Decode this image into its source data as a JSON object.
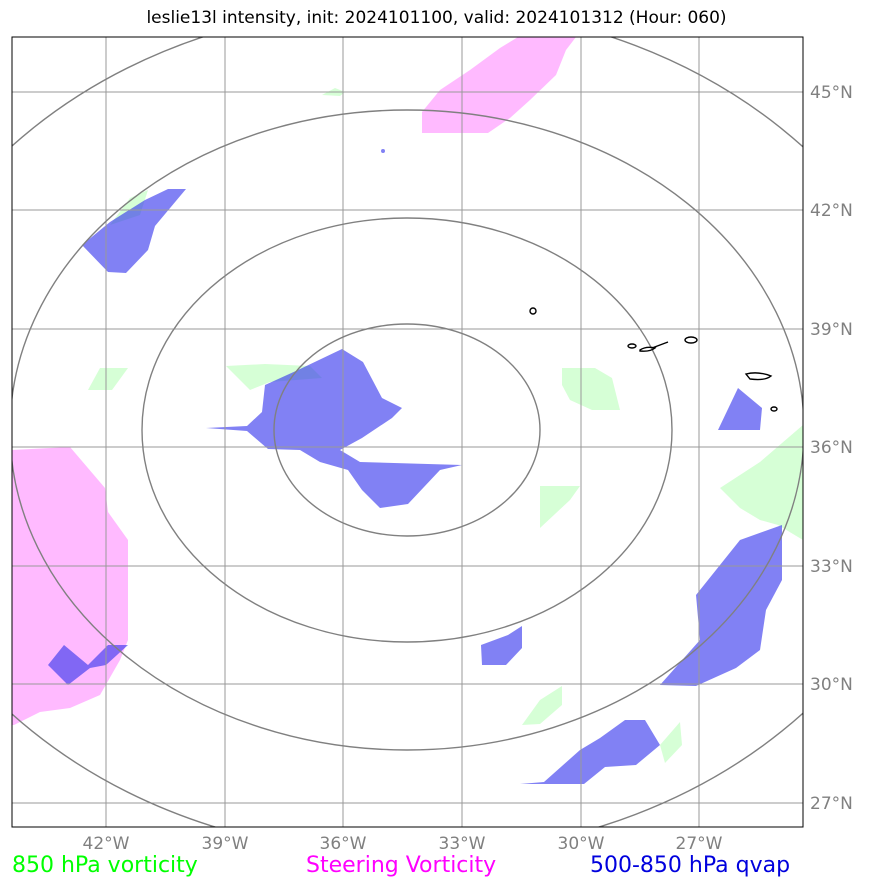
{
  "title": "leslie13l intensity, init: 2024101100, valid: 2024101312 (Hour: 060)",
  "map": {
    "lat_labels": [
      "45°N",
      "42°N",
      "39°N",
      "36°N",
      "33°N",
      "30°N",
      "27°N"
    ],
    "lon_labels": [
      "42°W",
      "39°W",
      "36°W",
      "33°W",
      "30°W",
      "27°W"
    ],
    "lon_range": [
      "44.5°W",
      "24.5°W"
    ],
    "lat_range": [
      "26.5°N",
      "46.5°N"
    ],
    "range_rings": 4,
    "colors": {
      "vorticity_850": "#ccffcc",
      "steering_vorticity": "#ffaaff",
      "qvap_500_850": "#2222ee",
      "gridline": "#999999",
      "ring": "#808080",
      "coastline": "#000000"
    }
  },
  "legend": {
    "vorticity_850": {
      "label": "850 hPa vorticity",
      "color": "#00ff00"
    },
    "steering": {
      "label": "Steering Vorticity",
      "color": "#ff00ff"
    },
    "qvap": {
      "label": "500-850 hPa qvap",
      "color": "#0000dd"
    }
  }
}
